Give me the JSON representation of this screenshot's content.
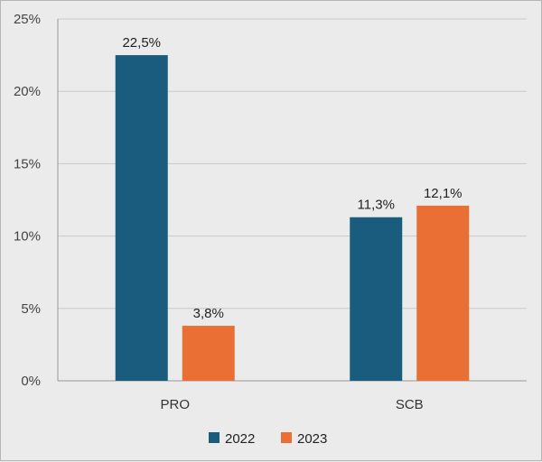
{
  "chart_data": {
    "type": "bar",
    "categories": [
      "PRO",
      "SCB"
    ],
    "series": [
      {
        "name": "2022",
        "values": [
          22.5,
          11.3
        ],
        "labels": [
          "22,5%",
          "11,3%"
        ],
        "color": "#1a5c7d"
      },
      {
        "name": "2023",
        "values": [
          3.8,
          12.1
        ],
        "labels": [
          "3,8%",
          "12,1%"
        ],
        "color": "#ea6f35"
      }
    ],
    "ylim": [
      0,
      25
    ],
    "yticks": [
      0,
      5,
      10,
      15,
      20,
      25
    ],
    "ytick_labels": [
      "0%",
      "5%",
      "10%",
      "15%",
      "20%",
      "25%"
    ],
    "grid": true,
    "legend_position": "bottom-center",
    "title": "",
    "xlabel": "",
    "ylabel": ""
  }
}
